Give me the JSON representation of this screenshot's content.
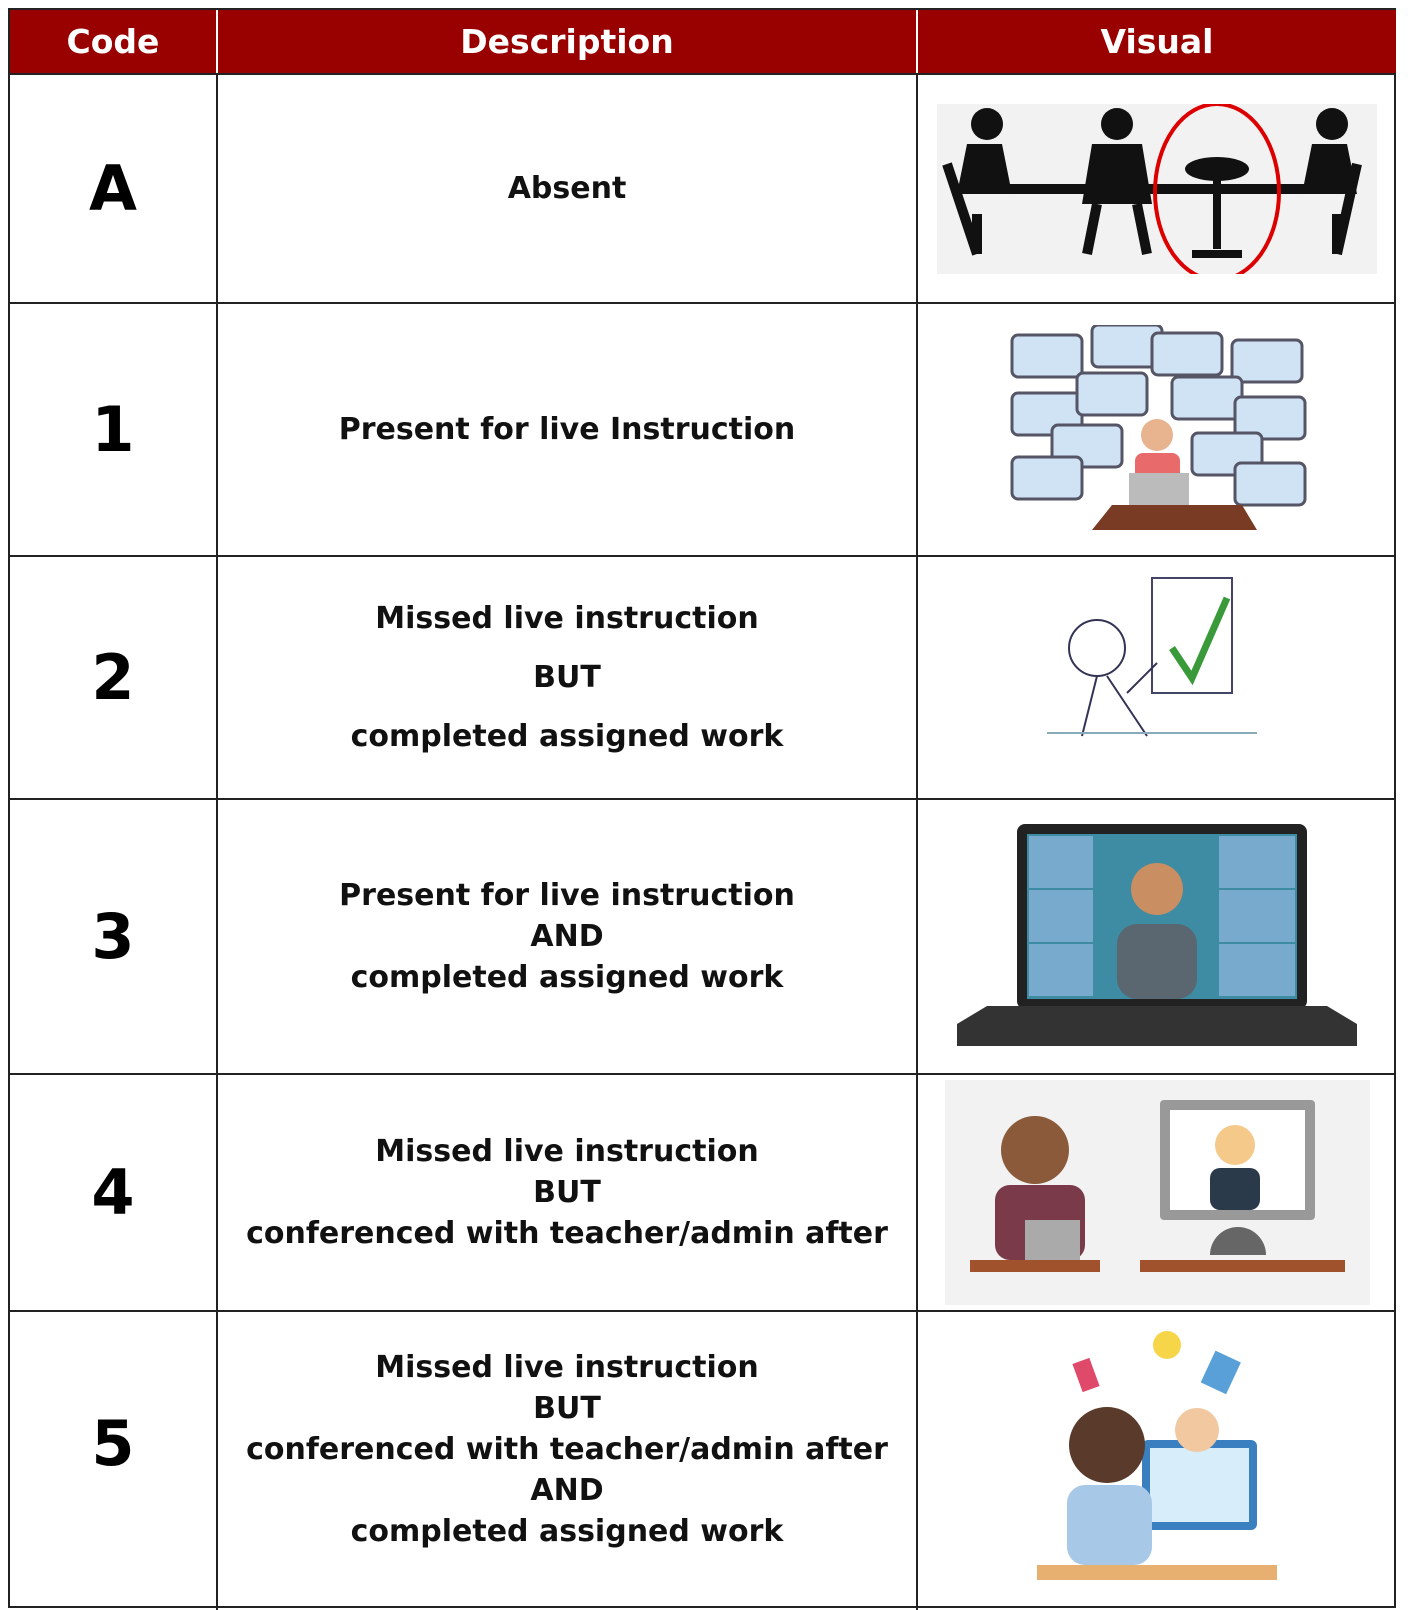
{
  "header": {
    "columns": [
      "Code",
      "Description",
      "Visual"
    ]
  },
  "table": {
    "rows": [
      {
        "code": "A",
        "description": [
          "Absent"
        ]
      },
      {
        "code": "1",
        "description": [
          "Present for live Instruction"
        ]
      },
      {
        "code": "2",
        "description": [
          "Missed live instruction",
          "BUT",
          "completed assigned work"
        ]
      },
      {
        "code": "3",
        "description": [
          "Present for live instruction",
          "AND",
          "completed assigned work"
        ]
      },
      {
        "code": "4",
        "description": [
          "Missed live instruction",
          "BUT",
          "conferenced with teacher/admin after"
        ]
      },
      {
        "code": "5",
        "description": [
          "Missed live instruction",
          "BUT",
          "conferenced with teacher/admin after",
          "AND",
          "completed assigned work"
        ]
      }
    ]
  }
}
